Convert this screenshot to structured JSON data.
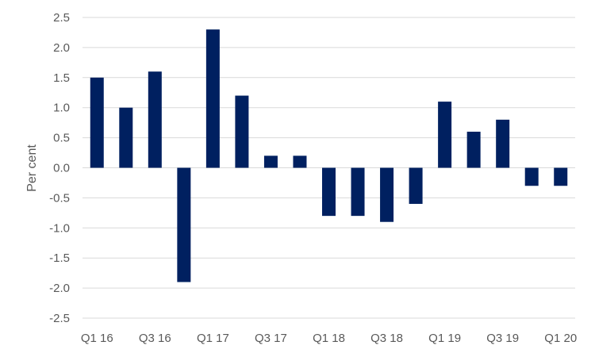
{
  "chart_data": {
    "type": "bar",
    "title": "",
    "xlabel": "",
    "ylabel": "Per cent",
    "ylim": [
      -2.5,
      2.5
    ],
    "ytick_step": 0.5,
    "yticks": [
      "2.5",
      "2.0",
      "1.5",
      "1.0",
      "0.5",
      "0.0",
      "-0.5",
      "-1.0",
      "-1.5",
      "-2.0",
      "-2.5"
    ],
    "grid": true,
    "legend": "none",
    "bar_color": "#002060",
    "categories": [
      "Q1 16",
      "Q2 16",
      "Q3 16",
      "Q4 16",
      "Q1 17",
      "Q2 17",
      "Q3 17",
      "Q4 17",
      "Q1 18",
      "Q2 18",
      "Q3 18",
      "Q4 18",
      "Q1 19",
      "Q2 19",
      "Q3 19",
      "Q4 19",
      "Q1 20"
    ],
    "tick_labels": [
      "Q1 16",
      "",
      "Q3 16",
      "",
      "Q1 17",
      "",
      "Q3 17",
      "",
      "Q1 18",
      "",
      "Q3 18",
      "",
      "Q1 19",
      "",
      "Q3 19",
      "",
      "Q1 20"
    ],
    "values": [
      1.5,
      1.0,
      1.6,
      -1.9,
      2.3,
      1.2,
      0.2,
      0.2,
      -0.8,
      -0.8,
      -0.9,
      -0.6,
      1.1,
      0.6,
      0.8,
      -0.3,
      -0.3
    ]
  }
}
